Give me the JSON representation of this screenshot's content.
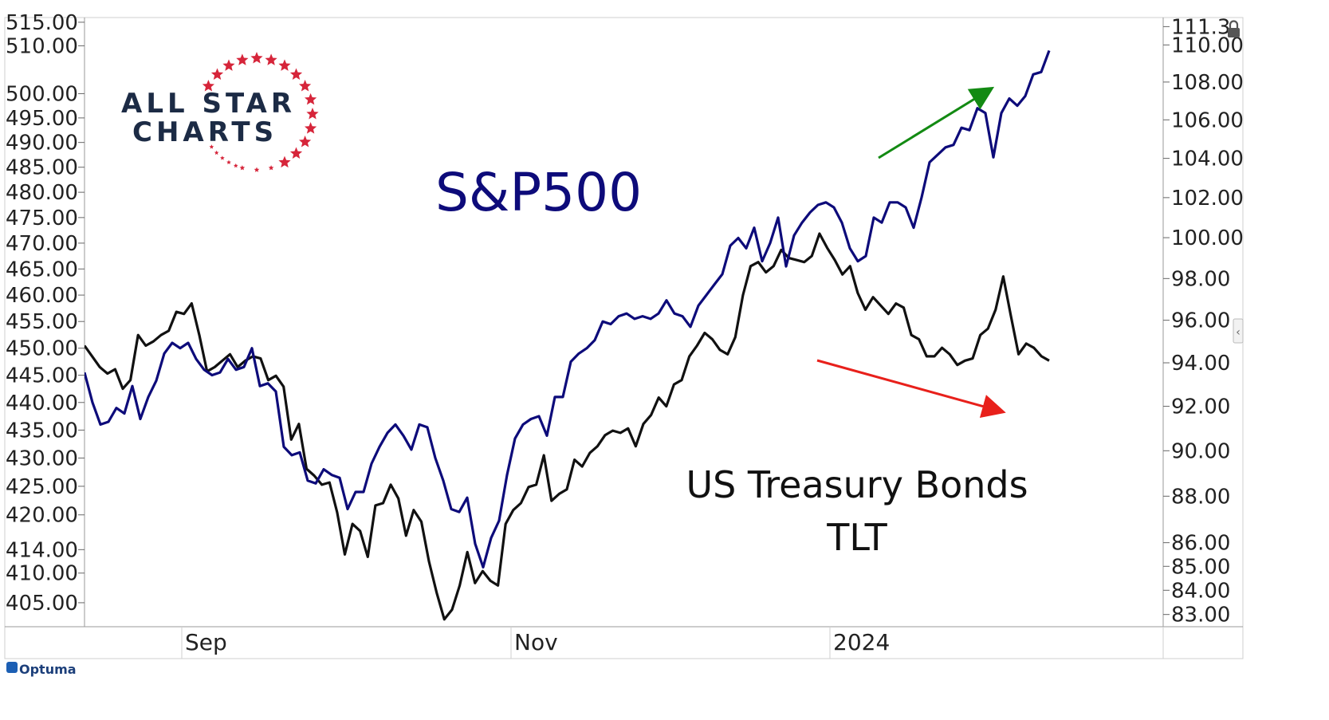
{
  "logo": {
    "line1": "ALL STAR",
    "line2": "CHARTS",
    "star_color": "#d6253a",
    "text_color": "#1c2b45"
  },
  "watermark": {
    "text": "Optuma"
  },
  "chart_data": {
    "type": "line",
    "annotations": [
      {
        "text": "S&P500",
        "color": "#0d0b7a"
      },
      {
        "text": "US Treasury Bonds",
        "color": "#111111"
      },
      {
        "text": "TLT",
        "color": "#111111"
      }
    ],
    "x_tick_labels": [
      "Sep",
      "Nov",
      "2024",
      ""
    ],
    "left_axis": {
      "ticks": [
        405,
        410,
        414,
        420,
        425,
        430,
        435,
        440,
        445,
        450,
        455,
        460,
        465,
        470,
        475,
        480,
        485,
        490,
        495,
        500,
        510,
        515
      ],
      "tick_labels": [
        "405.00",
        "410.00",
        "414.00",
        "420.00",
        "425.00",
        "430.00",
        "435.00",
        "440.00",
        "445.00",
        "450.00",
        "455.00",
        "460.00",
        "465.00",
        "470.00",
        "475.00",
        "480.00",
        "485.00",
        "490.00",
        "495.00",
        "500.00",
        "510.00",
        "515.00"
      ],
      "range": [
        401,
        516
      ],
      "scale": "log"
    },
    "right_axis": {
      "ticks": [
        83,
        84,
        85,
        86,
        88,
        90,
        92,
        94,
        96,
        98,
        100,
        102,
        104,
        106,
        108,
        110,
        111
      ],
      "tick_labels": [
        "83.00",
        "84.00",
        "85.00",
        "86.00",
        "88.00",
        "90.00",
        "92.00",
        "94.00",
        "96.00",
        "98.00",
        "100.00",
        "102.00",
        "104.00",
        "106.00",
        "108.00",
        "110.00",
        "111.3"
      ],
      "range": [
        82.5,
        111.5
      ],
      "scale": "log"
    },
    "series": [
      {
        "color": "#0d0b7a",
        "axis": "left",
        "values": [
          445.5,
          440,
          436,
          436.5,
          439,
          438,
          443,
          437,
          441,
          444,
          449,
          451,
          450,
          451,
          448,
          446,
          445,
          445.5,
          448,
          446,
          446.5,
          450,
          443,
          443.5,
          442,
          432,
          430.5,
          431,
          426,
          425.5,
          428,
          427,
          426.5,
          421,
          424,
          424,
          429,
          432,
          434.5,
          436,
          434,
          431.5,
          436,
          435.5,
          430,
          426,
          421,
          420.5,
          423,
          415,
          411,
          416,
          419,
          427,
          433.5,
          436,
          437,
          437.5,
          434,
          441,
          441,
          447.5,
          449,
          450,
          451.5,
          455,
          454.5,
          456,
          456.5,
          455.5,
          456,
          455.5,
          456.5,
          459,
          456.5,
          456,
          454,
          458,
          460,
          462,
          464,
          469.5,
          471,
          469,
          473,
          466.5,
          470,
          475,
          465.5,
          471.5,
          474,
          476,
          477.5,
          478,
          477,
          474,
          469,
          466.5,
          467.5,
          475,
          474,
          478,
          478,
          477,
          473,
          479,
          486,
          487.5,
          489,
          489.5,
          493,
          492.5,
          497,
          496,
          487,
          496,
          499,
          497.5,
          499.5,
          504,
          504.5,
          509
        ]
      },
      {
        "color": "#111111",
        "axis": "right",
        "values": [
          94.8,
          94.3,
          93.8,
          93.5,
          93.7,
          92.8,
          93.2,
          95.3,
          94.8,
          95,
          95.3,
          95.5,
          96.4,
          96.3,
          96.8,
          95.3,
          93.6,
          93.8,
          94.1,
          94.4,
          93.8,
          94.1,
          94.3,
          94.2,
          93.2,
          93.4,
          92.9,
          90.5,
          91.2,
          89.2,
          88.9,
          88.5,
          88.6,
          87.3,
          85.5,
          86.8,
          86.5,
          85.4,
          87.6,
          87.7,
          88.5,
          87.9,
          86.3,
          87.4,
          86.9,
          85.2,
          83.9,
          82.8,
          83.2,
          84.2,
          85.6,
          84.3,
          84.8,
          84.4,
          84.2,
          86.8,
          87.4,
          87.7,
          88.4,
          88.5,
          89.8,
          87.8,
          88.1,
          88.3,
          89.6,
          89.3,
          89.9,
          90.2,
          90.7,
          90.9,
          90.8,
          91,
          90.2,
          91.2,
          91.6,
          92.4,
          92,
          93,
          93.2,
          94.3,
          94.8,
          95.4,
          95.1,
          94.6,
          94.4,
          95.2,
          97.2,
          98.6,
          98.8,
          98.3,
          98.6,
          99.4,
          99,
          98.9,
          98.8,
          99.1,
          100.2,
          99.5,
          98.9,
          98.2,
          98.6,
          97.3,
          96.5,
          97.1,
          96.7,
          96.3,
          96.8,
          96.6,
          95.3,
          95.1,
          94.3,
          94.3,
          94.7,
          94.4,
          93.9,
          94.1,
          94.2,
          95.3,
          95.6,
          96.5,
          98.1,
          96.2,
          94.4,
          94.9,
          94.7,
          94.3,
          94.1
        ]
      }
    ]
  }
}
